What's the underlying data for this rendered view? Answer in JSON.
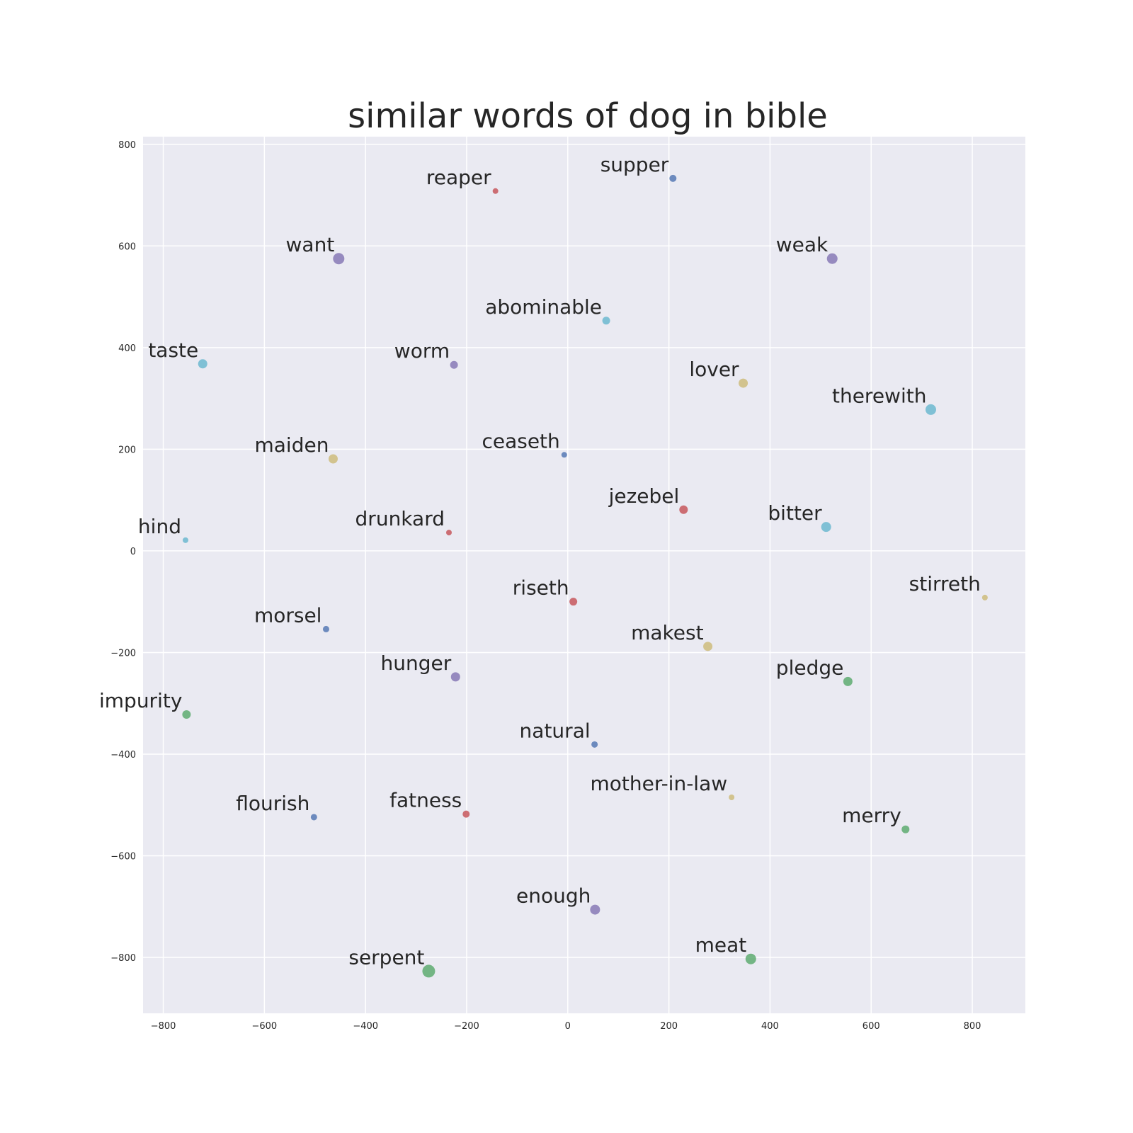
{
  "chart_data": {
    "type": "scatter",
    "title": "similar words of dog in bible",
    "xlabel": "",
    "ylabel": "",
    "xlim": [
      -840,
      905
    ],
    "ylim": [
      -910,
      815
    ],
    "xticks": [
      -800,
      -600,
      -400,
      -200,
      0,
      200,
      400,
      600,
      800
    ],
    "yticks": [
      800,
      600,
      400,
      200,
      0,
      -200,
      -400,
      -600,
      -800
    ],
    "xtick_labels": [
      "−800",
      "−600",
      "−400",
      "−200",
      "0",
      "200",
      "400",
      "600",
      "800"
    ],
    "ytick_labels": [
      "800",
      "600",
      "400",
      "200",
      "0",
      "−200",
      "−400",
      "−600",
      "−800"
    ],
    "grid": true,
    "background": "#eaeaf2",
    "points": [
      {
        "word": "supper",
        "x": 208,
        "y": 733,
        "size": 5,
        "color": "#4c72b0"
      },
      {
        "word": "reaper",
        "x": -143,
        "y": 708,
        "size": 4,
        "color": "#c44e52"
      },
      {
        "word": "want",
        "x": -453,
        "y": 575,
        "size": 8,
        "color": "#8172b2"
      },
      {
        "word": "weak",
        "x": 523,
        "y": 575,
        "size": 7.5,
        "color": "#8172b2"
      },
      {
        "word": "abominable",
        "x": 76,
        "y": 453,
        "size": 5.5,
        "color": "#64b5cd"
      },
      {
        "word": "taste",
        "x": -722,
        "y": 368,
        "size": 6.5,
        "color": "#64b5cd"
      },
      {
        "word": "worm",
        "x": -225,
        "y": 366,
        "size": 5.5,
        "color": "#8172b2"
      },
      {
        "word": "lover",
        "x": 347,
        "y": 330,
        "size": 6.5,
        "color": "#ccb974"
      },
      {
        "word": "therewith",
        "x": 718,
        "y": 278,
        "size": 7.5,
        "color": "#64b5cd"
      },
      {
        "word": "maiden",
        "x": -464,
        "y": 181,
        "size": 6.5,
        "color": "#ccb974"
      },
      {
        "word": "ceaseth",
        "x": -7,
        "y": 189,
        "size": 4,
        "color": "#4c72b0"
      },
      {
        "word": "jezebel",
        "x": 229,
        "y": 81,
        "size": 6,
        "color": "#c44e52"
      },
      {
        "word": "bitter",
        "x": 511,
        "y": 47,
        "size": 7,
        "color": "#64b5cd"
      },
      {
        "word": "hind",
        "x": -756,
        "y": 21,
        "size": 4,
        "color": "#64b5cd"
      },
      {
        "word": "drunkard",
        "x": -235,
        "y": 36,
        "size": 4,
        "color": "#c44e52"
      },
      {
        "word": "stirreth",
        "x": 825,
        "y": -92,
        "size": 4,
        "color": "#ccb974"
      },
      {
        "word": "riseth",
        "x": 11,
        "y": -100,
        "size": 5.5,
        "color": "#c44e52"
      },
      {
        "word": "morsel",
        "x": -478,
        "y": -154,
        "size": 4.5,
        "color": "#4c72b0"
      },
      {
        "word": "makest",
        "x": 277,
        "y": -188,
        "size": 6.5,
        "color": "#ccb974"
      },
      {
        "word": "pledge",
        "x": 554,
        "y": -257,
        "size": 6.5,
        "color": "#55a868"
      },
      {
        "word": "hunger",
        "x": -222,
        "y": -248,
        "size": 6.5,
        "color": "#8172b2"
      },
      {
        "word": "impurity",
        "x": -754,
        "y": -322,
        "size": 6,
        "color": "#55a868"
      },
      {
        "word": "natural",
        "x": 53,
        "y": -381,
        "size": 4.5,
        "color": "#4c72b0"
      },
      {
        "word": "mother-in-law",
        "x": 324,
        "y": -485,
        "size": 4,
        "color": "#ccb974"
      },
      {
        "word": "merry",
        "x": 668,
        "y": -548,
        "size": 5.5,
        "color": "#55a868"
      },
      {
        "word": "flourish",
        "x": -502,
        "y": -524,
        "size": 4.5,
        "color": "#4c72b0"
      },
      {
        "word": "fatness",
        "x": -201,
        "y": -518,
        "size": 5,
        "color": "#c44e52"
      },
      {
        "word": "enough",
        "x": 54,
        "y": -706,
        "size": 7,
        "color": "#8172b2"
      },
      {
        "word": "meat",
        "x": 362,
        "y": -803,
        "size": 7.5,
        "color": "#55a868"
      },
      {
        "word": "serpent",
        "x": -275,
        "y": -827,
        "size": 9,
        "color": "#55a868"
      }
    ]
  }
}
